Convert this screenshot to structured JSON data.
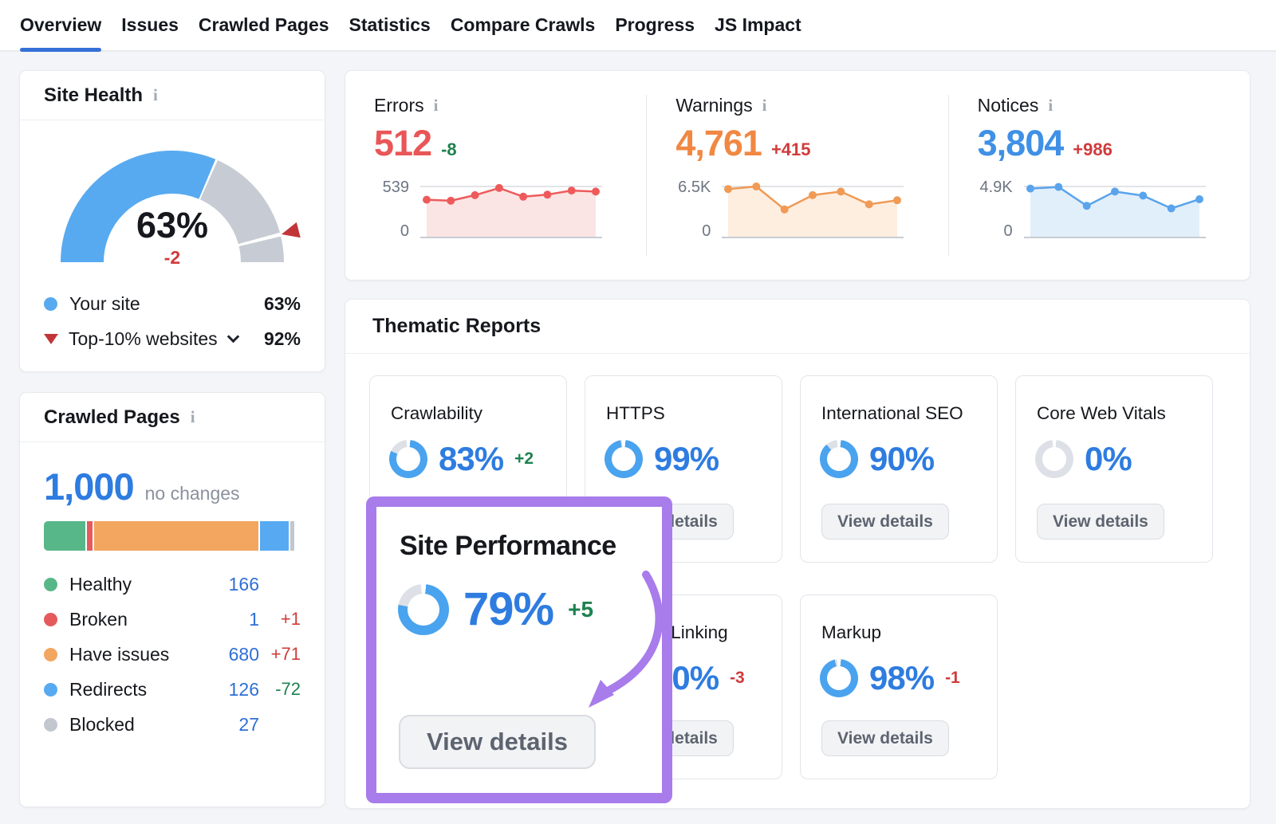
{
  "nav": {
    "tabs": [
      {
        "label": "Overview",
        "active": true
      },
      {
        "label": "Issues"
      },
      {
        "label": "Crawled Pages"
      },
      {
        "label": "Statistics"
      },
      {
        "label": "Compare Crawls"
      },
      {
        "label": "Progress"
      },
      {
        "label": "JS Impact"
      }
    ]
  },
  "colors": {
    "accent_blue": "#3570d8",
    "number_blue": "#2e7ce0",
    "link_blue": "#2f6fd6",
    "ring_fill": "#4aa3ee",
    "ring_track": "#dde0e6",
    "gauge_fill": "#58aaf0",
    "gauge_track": "#c7ccd4",
    "gauge_marker": "#c13538",
    "delta_green": "#1e8150",
    "delta_red": "#d03b3b",
    "highlight_purple": "#a87ceb"
  },
  "site_health": {
    "title": "Site Health",
    "info_icon": "i",
    "gauge": {
      "percent": 63,
      "display": "63%",
      "delta": "-2",
      "delta_color": "red",
      "marker_percent": 92
    },
    "legend": [
      {
        "label": "Your site",
        "value": "63%",
        "dot_color": "#58aaf0"
      },
      {
        "label": "Top-10% websites",
        "value": "92%"
      }
    ]
  },
  "crawled_pages": {
    "title": "Crawled Pages",
    "info_icon": "i",
    "total": "1,000",
    "note": "no changes",
    "bar": [
      {
        "name": "healthy",
        "color": "#57b788",
        "width": 16.2
      },
      {
        "name": "broken",
        "color": "#e55b5c",
        "width": 2.6
      },
      {
        "name": "have-issues",
        "color": "#f2a660",
        "width": 64.8
      },
      {
        "name": "redirects",
        "color": "#57aaf2",
        "width": 11.6
      },
      {
        "name": "blocked",
        "color": "#c2c7cf",
        "width": 2.4
      }
    ],
    "legend": [
      {
        "label": "Healthy",
        "value": "166",
        "delta": "",
        "dot_color": "#57b788"
      },
      {
        "label": "Broken",
        "value": "1",
        "delta": "+1",
        "delta_color": "red",
        "dot_color": "#e55b5c"
      },
      {
        "label": "Have issues",
        "value": "680",
        "delta": "+71",
        "delta_color": "red",
        "dot_color": "#f2a660"
      },
      {
        "label": "Redirects",
        "value": "126",
        "delta": "-72",
        "delta_color": "green",
        "dot_color": "#57aaf2"
      },
      {
        "label": "Blocked",
        "value": "27",
        "delta": "",
        "dot_color": "#c2c7cf"
      }
    ]
  },
  "issue_stats": [
    {
      "label": "Errors",
      "info_icon": "i",
      "value": "512",
      "value_color": "#e95657",
      "delta": "-8",
      "delta_color": "green",
      "y_max": "539",
      "y_min": "0",
      "line_color": "#ee5a5b",
      "fill_color": "#fbe4e4",
      "points": [
        0.74,
        0.72,
        0.83,
        0.97,
        0.8,
        0.84,
        0.92,
        0.9
      ]
    },
    {
      "label": "Warnings",
      "info_icon": "i",
      "value": "4,761",
      "value_color": "#f08843",
      "delta": "+415",
      "delta_color": "red",
      "y_max": "6.5K",
      "y_min": "0",
      "line_color": "#f09a55",
      "fill_color": "#fdeee0",
      "points": [
        0.95,
        1.0,
        0.55,
        0.83,
        0.9,
        0.65,
        0.73
      ]
    },
    {
      "label": "Notices",
      "info_icon": "i",
      "value": "3,804",
      "value_color": "#3f90e6",
      "delta": "+986",
      "delta_color": "red",
      "y_max": "4.9K",
      "y_min": "0",
      "line_color": "#5aa4ec",
      "fill_color": "#e1effa",
      "points": [
        0.96,
        0.99,
        0.62,
        0.9,
        0.82,
        0.57,
        0.75
      ]
    }
  ],
  "thematic": {
    "title": "Thematic Reports",
    "button_label": "View details",
    "cards": [
      {
        "label": "Crawlability",
        "percent": 83,
        "percent_text": "83%",
        "delta": "+2",
        "delta_color": "green"
      },
      {
        "label": "HTTPS",
        "percent": 99,
        "percent_text": "99%",
        "delta": ""
      },
      {
        "label": "International SEO",
        "percent": 90,
        "percent_text": "90%",
        "delta": ""
      },
      {
        "label": "Core Web Vitals",
        "percent": 0,
        "percent_text": "0%",
        "delta": ""
      },
      {
        "label": "Internal Linking",
        "percent": 80,
        "percent_text": "80%",
        "delta": "-3",
        "delta_color": "red"
      },
      {
        "label": "Markup",
        "percent": 98,
        "percent_text": "98%",
        "delta": "-1",
        "delta_color": "red"
      }
    ],
    "highlight": {
      "label": "Site Performance",
      "percent": 79,
      "percent_text": "79%",
      "delta": "+5",
      "delta_color": "green",
      "button_label": "View details",
      "accent_color": "#a87ceb"
    }
  }
}
